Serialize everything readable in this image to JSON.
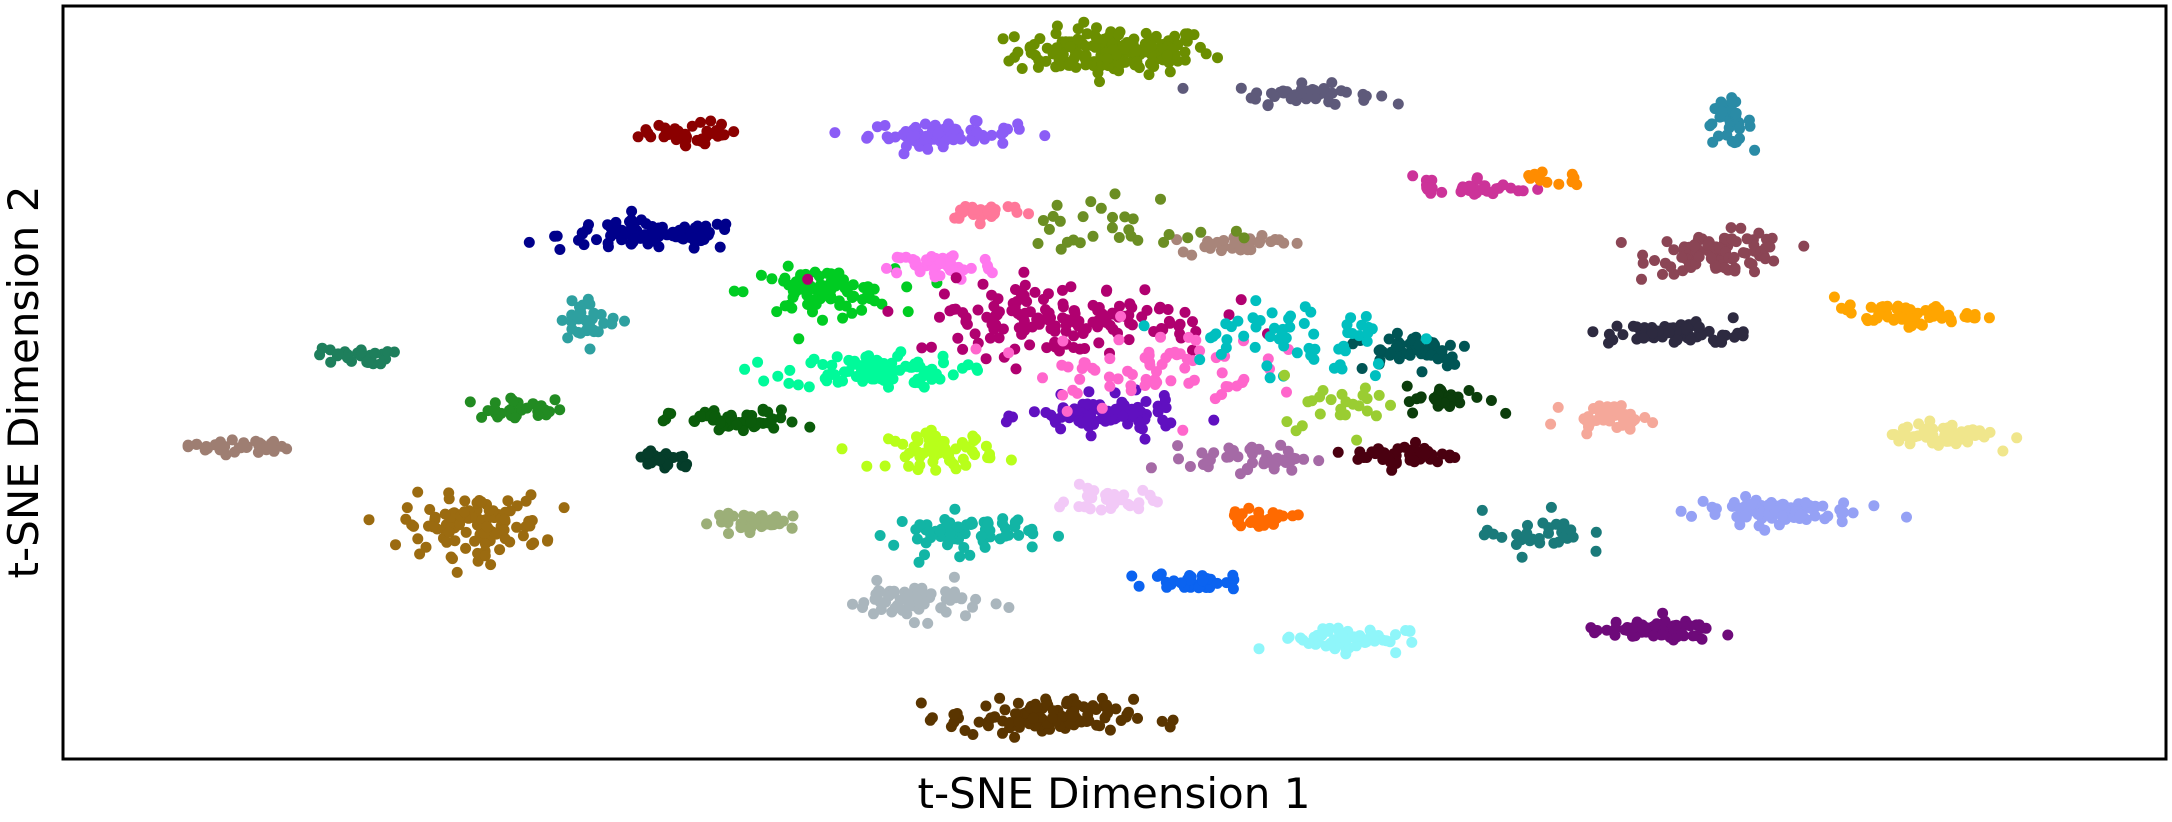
{
  "chart_data": {
    "type": "scatter",
    "title": "",
    "xlabel": "t-SNE Dimension 1",
    "ylabel": "t-SNE Dimension 2",
    "xlim": [
      0,
      100
    ],
    "ylim": [
      0,
      100
    ],
    "grid": false,
    "legend": "none",
    "clusters": [
      {
        "color": "#6b8e00",
        "center": [
          50.0,
          94.0
        ],
        "spread": [
          4.2,
          2.8
        ],
        "count": 170
      },
      {
        "color": "#5e5a7a",
        "center": [
          59.0,
          88.3
        ],
        "spread": [
          3.0,
          1.2
        ],
        "count": 45
      },
      {
        "color": "#8b5cf6",
        "center": [
          41.8,
          83.0
        ],
        "spread": [
          3.2,
          1.4
        ],
        "count": 75
      },
      {
        "color": "#2a8ba6",
        "center": [
          79.2,
          84.5
        ],
        "spread": [
          1.0,
          2.6
        ],
        "count": 35
      },
      {
        "color": "#00008b",
        "center": [
          28.0,
          69.5
        ],
        "spread": [
          4.0,
          1.8
        ],
        "count": 95
      },
      {
        "color": "#8b4555",
        "center": [
          78.8,
          67.2
        ],
        "spread": [
          3.0,
          2.5
        ],
        "count": 95
      },
      {
        "color": "#00cc22",
        "center": [
          36.0,
          62.0
        ],
        "spread": [
          3.2,
          2.8
        ],
        "count": 80
      },
      {
        "color": "#ff77ee",
        "center": [
          41.8,
          65.5
        ],
        "spread": [
          2.3,
          1.8
        ],
        "count": 45
      },
      {
        "color": "#ff7799",
        "center": [
          43.8,
          72.8
        ],
        "spread": [
          1.8,
          1.1
        ],
        "count": 30
      },
      {
        "color": "#00fa9a",
        "center": [
          38.5,
          51.5
        ],
        "spread": [
          3.8,
          2.0
        ],
        "count": 100
      },
      {
        "color": "#1e7f5c",
        "center": [
          13.8,
          53.5
        ],
        "spread": [
          1.6,
          1.0
        ],
        "count": 30
      },
      {
        "color": "#9e7e72",
        "center": [
          8.3,
          41.5
        ],
        "spread": [
          2.2,
          0.9
        ],
        "count": 35
      },
      {
        "color": "#0b5c0b",
        "center": [
          32.0,
          44.8
        ],
        "spread": [
          2.8,
          1.4
        ],
        "count": 55
      },
      {
        "color": "#053d2a",
        "center": [
          28.6,
          39.8
        ],
        "spread": [
          1.4,
          1.3
        ],
        "count": 25
      },
      {
        "color": "#9b6b10",
        "center": [
          19.5,
          31.0
        ],
        "spread": [
          3.0,
          3.6
        ],
        "count": 110
      },
      {
        "color": "#9caf78",
        "center": [
          33.3,
          31.5
        ],
        "spread": [
          2.2,
          1.0
        ],
        "count": 40
      },
      {
        "color": "#b8ff1a",
        "center": [
          41.8,
          41.0
        ],
        "spread": [
          2.3,
          2.2
        ],
        "count": 60
      },
      {
        "color": "#12b5a5",
        "center": [
          42.8,
          30.0
        ],
        "spread": [
          3.0,
          2.4
        ],
        "count": 70
      },
      {
        "color": "#aab6bd",
        "center": [
          40.5,
          21.0
        ],
        "spread": [
          3.0,
          2.2
        ],
        "count": 60
      },
      {
        "color": "#6010c0",
        "center": [
          49.5,
          45.5
        ],
        "spread": [
          3.2,
          2.2
        ],
        "count": 90
      },
      {
        "color": "#f2c9f7",
        "center": [
          49.8,
          34.3
        ],
        "spread": [
          1.8,
          1.6
        ],
        "count": 35
      },
      {
        "color": "#ff6a00",
        "center": [
          56.8,
          32.0
        ],
        "spread": [
          1.6,
          0.9
        ],
        "count": 25
      },
      {
        "color": "#0b63f0",
        "center": [
          53.8,
          23.6
        ],
        "spread": [
          1.8,
          1.0
        ],
        "count": 35
      },
      {
        "color": "#8ff6fa",
        "center": [
          60.8,
          16.0
        ],
        "spread": [
          2.8,
          1.6
        ],
        "count": 55
      },
      {
        "color": "#5a3500",
        "center": [
          46.5,
          5.5
        ],
        "spread": [
          4.0,
          2.2
        ],
        "count": 120
      },
      {
        "color": "#a56aa6",
        "center": [
          56.5,
          40.0
        ],
        "spread": [
          2.6,
          1.6
        ],
        "count": 45
      },
      {
        "color": "#4a0010",
        "center": [
          63.8,
          40.3
        ],
        "spread": [
          2.2,
          1.5
        ],
        "count": 45
      },
      {
        "color": "#005555",
        "center": [
          64.2,
          54.5
        ],
        "spread": [
          2.6,
          2.2
        ],
        "count": 55
      },
      {
        "color": "#0b3d0b",
        "center": [
          65.8,
          47.8
        ],
        "spread": [
          1.8,
          1.6
        ],
        "count": 30
      },
      {
        "color": "#b00070",
        "center": [
          47.5,
          58.5
        ],
        "spread": [
          6.5,
          4.5
        ],
        "count": 150
      },
      {
        "color": "#a8857a",
        "center": [
          55.5,
          68.5
        ],
        "spread": [
          2.2,
          1.2
        ],
        "count": 30
      },
      {
        "color": "#f5a89a",
        "center": [
          73.5,
          45.5
        ],
        "spread": [
          1.8,
          1.4
        ],
        "count": 35
      },
      {
        "color": "#2d2a40",
        "center": [
          76.8,
          56.5
        ],
        "spread": [
          3.0,
          1.4
        ],
        "count": 60
      },
      {
        "color": "#ffa500",
        "center": [
          87.5,
          59.0
        ],
        "spread": [
          3.0,
          1.2
        ],
        "count": 60
      },
      {
        "color": "#f0e68c",
        "center": [
          89.5,
          43.0
        ],
        "spread": [
          2.2,
          1.5
        ],
        "count": 60
      },
      {
        "color": "#95a1f5",
        "center": [
          81.3,
          33.0
        ],
        "spread": [
          3.5,
          1.6
        ],
        "count": 80
      },
      {
        "color": "#6e0a7a",
        "center": [
          75.5,
          17.0
        ],
        "spread": [
          2.8,
          1.2
        ],
        "count": 60
      },
      {
        "color": "#1a7a7a",
        "center": [
          70.0,
          30.0
        ],
        "spread": [
          2.2,
          2.6
        ],
        "count": 30
      },
      {
        "color": "#cc3399",
        "center": [
          67.0,
          76.0
        ],
        "spread": [
          2.6,
          1.4
        ],
        "count": 35
      },
      {
        "color": "#ff8c00",
        "center": [
          70.5,
          77.0
        ],
        "spread": [
          1.6,
          0.8
        ],
        "count": 12
      },
      {
        "color": "#8b0000",
        "center": [
          30.0,
          83.0
        ],
        "spread": [
          2.2,
          1.4
        ],
        "count": 40
      },
      {
        "color": "#2ea0a0",
        "center": [
          25.0,
          58.5
        ],
        "spread": [
          1.2,
          2.4
        ],
        "count": 35
      },
      {
        "color": "#228b22",
        "center": [
          22.0,
          46.5
        ],
        "spread": [
          2.4,
          1.2
        ],
        "count": 30
      },
      {
        "color": "#ff66cc",
        "center": [
          51.5,
          52.0
        ],
        "spread": [
          5.0,
          5.0
        ],
        "count": 70
      },
      {
        "color": "#00bfbf",
        "center": [
          58.0,
          56.0
        ],
        "spread": [
          5.0,
          5.0
        ],
        "count": 60
      },
      {
        "color": "#6b8e23",
        "center": [
          50.5,
          70.5
        ],
        "spread": [
          4.0,
          4.0
        ],
        "count": 30
      },
      {
        "color": "#9acd32",
        "center": [
          60.5,
          47.5
        ],
        "spread": [
          3.0,
          3.0
        ],
        "count": 25
      }
    ]
  }
}
